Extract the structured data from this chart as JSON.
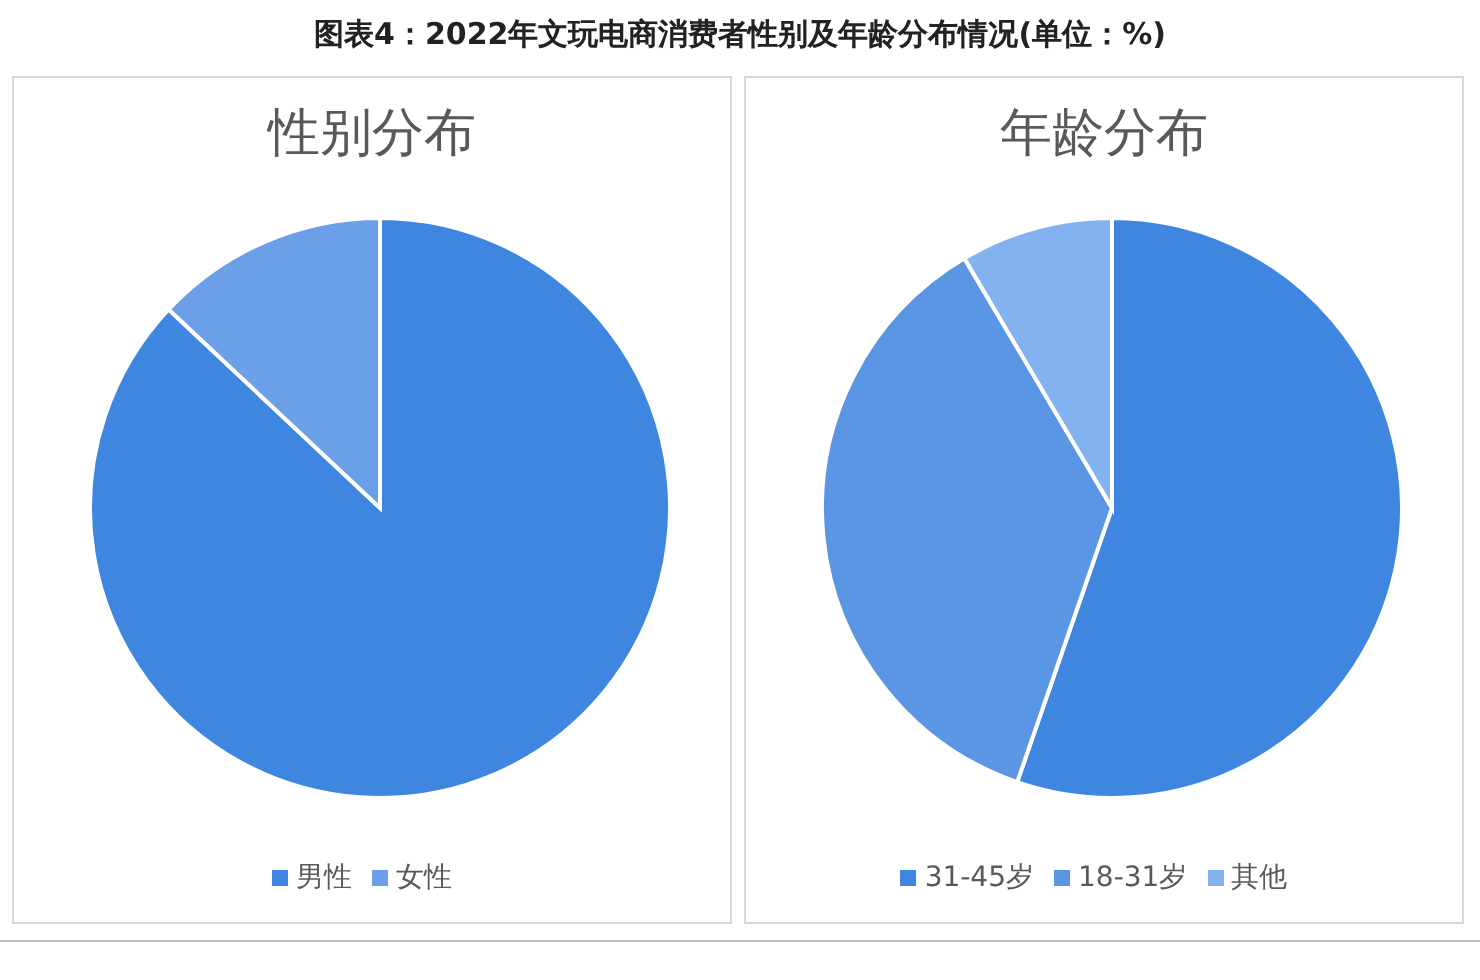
{
  "chart_data": [
    {
      "type": "pie",
      "title": "图表4：2022年文玩电商消费者性别及年龄分布情况(单位：%)",
      "subtitle": "性别分布",
      "categories": [
        "男性",
        "女性"
      ],
      "values": [
        87,
        13
      ],
      "colors": [
        "#3f86e0",
        "#6b9fe7"
      ],
      "legend": "bottom"
    },
    {
      "type": "pie",
      "subtitle": "年龄分布",
      "categories": [
        "31-45岁",
        "18-31岁",
        "其他"
      ],
      "values": [
        55.3,
        36.2,
        8.5
      ],
      "colors": [
        "#3f86e0",
        "#5b96e4",
        "#82b2ef"
      ],
      "legend": "bottom"
    }
  ]
}
